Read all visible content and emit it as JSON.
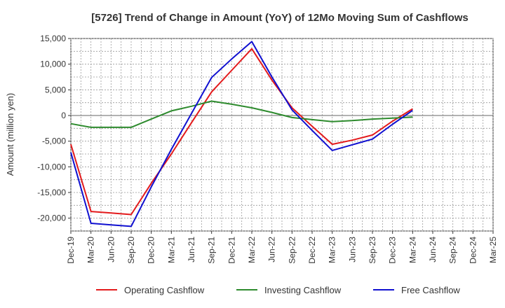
{
  "chart_data": {
    "type": "line",
    "title": "[5726]  Trend of Change in Amount (YoY) of 12Mo Moving Sum of Cashflows",
    "xlabel": "",
    "ylabel": "Amount (million yen)",
    "ylim": [
      -22500,
      15000
    ],
    "yticks": [
      15000,
      10000,
      5000,
      0,
      -5000,
      -10000,
      -15000,
      -20000
    ],
    "ytick_labels": [
      "15,000",
      "10,000",
      "5,000",
      "0",
      "-5,000",
      "-10,000",
      "-15,000",
      "-20,000"
    ],
    "categories": [
      "Dec-19",
      "Mar-20",
      "Jun-20",
      "Sep-20",
      "Dec-20",
      "Mar-21",
      "Jun-21",
      "Sep-21",
      "Dec-21",
      "Mar-22",
      "Jun-22",
      "Sep-22",
      "Dec-22",
      "Mar-23",
      "Jun-23",
      "Sep-23",
      "Dec-23",
      "Mar-24",
      "Jun-24",
      "Sep-24",
      "Dec-24",
      "Mar-25"
    ],
    "series": [
      {
        "name": "Operating Cashflow",
        "color": "#e31a1c",
        "values": [
          -5600,
          -18700,
          -19000,
          -19300,
          -13200,
          -7500,
          -1400,
          4600,
          8800,
          13000,
          6900,
          1500,
          -2100,
          -5600,
          -4800,
          -3800,
          -1100,
          1300,
          null,
          null,
          null,
          null
        ]
      },
      {
        "name": "Investing Cashflow",
        "color": "#2e8b2e",
        "values": [
          -1600,
          -2300,
          -2300,
          -2300,
          -700,
          900,
          1800,
          2800,
          2200,
          1500,
          600,
          -400,
          -800,
          -1200,
          -1000,
          -700,
          -500,
          -300,
          null,
          null,
          null,
          null
        ]
      },
      {
        "name": "Free Cashflow",
        "color": "#1010d0",
        "values": [
          -7200,
          -21000,
          -21300,
          -21600,
          -13900,
          -6600,
          400,
          7400,
          11000,
          14400,
          7500,
          1100,
          -2900,
          -6800,
          -5700,
          -4600,
          -1700,
          1000,
          null,
          null,
          null,
          null
        ]
      }
    ],
    "grid": true,
    "legend_position": "bottom"
  }
}
